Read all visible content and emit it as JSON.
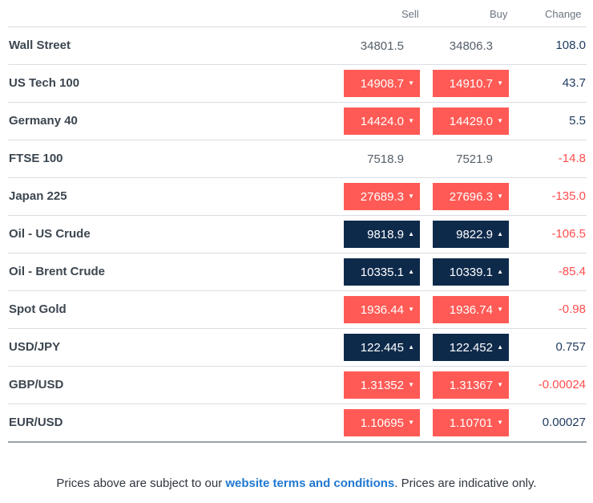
{
  "header": {
    "sell": "Sell",
    "buy": "Buy",
    "change": "Change"
  },
  "rows": [
    {
      "name": "Wall Street",
      "sell": "34801.5",
      "buy": "34806.3",
      "change": "108.0",
      "dir": "none",
      "change_dir": "pos"
    },
    {
      "name": "US Tech 100",
      "sell": "14908.7",
      "buy": "14910.7",
      "change": "43.7",
      "dir": "down",
      "change_dir": "pos"
    },
    {
      "name": "Germany 40",
      "sell": "14424.0",
      "buy": "14429.0",
      "change": "5.5",
      "dir": "down",
      "change_dir": "pos"
    },
    {
      "name": "FTSE 100",
      "sell": "7518.9",
      "buy": "7521.9",
      "change": "-14.8",
      "dir": "none",
      "change_dir": "neg"
    },
    {
      "name": "Japan 225",
      "sell": "27689.3",
      "buy": "27696.3",
      "change": "-135.0",
      "dir": "down",
      "change_dir": "neg"
    },
    {
      "name": "Oil - US Crude",
      "sell": "9818.9",
      "buy": "9822.9",
      "change": "-106.5",
      "dir": "up",
      "change_dir": "neg"
    },
    {
      "name": "Oil - Brent Crude",
      "sell": "10335.1",
      "buy": "10339.1",
      "change": "-85.4",
      "dir": "up",
      "change_dir": "neg"
    },
    {
      "name": "Spot Gold",
      "sell": "1936.44",
      "buy": "1936.74",
      "change": "-0.98",
      "dir": "down",
      "change_dir": "neg"
    },
    {
      "name": "USD/JPY",
      "sell": "122.445",
      "buy": "122.452",
      "change": "0.757",
      "dir": "up",
      "change_dir": "pos"
    },
    {
      "name": "GBP/USD",
      "sell": "1.31352",
      "buy": "1.31367",
      "change": "-0.00024",
      "dir": "down",
      "change_dir": "neg"
    },
    {
      "name": "EUR/USD",
      "sell": "1.10695",
      "buy": "1.10701",
      "change": "0.00027",
      "dir": "down",
      "change_dir": "pos"
    }
  ],
  "footer": {
    "prefix": "Prices above are subject to our ",
    "link": "website terms and conditions",
    "suffix": ". Prices are indicative only."
  },
  "icons": {
    "up": "caret-up-icon",
    "down": "caret-down-icon"
  },
  "colors": {
    "down": "#ff5a55",
    "up": "#0e2a4b",
    "neg_text": "#ff4d4d",
    "pos_text": "#1e3a5f",
    "link": "#1f78d1"
  }
}
